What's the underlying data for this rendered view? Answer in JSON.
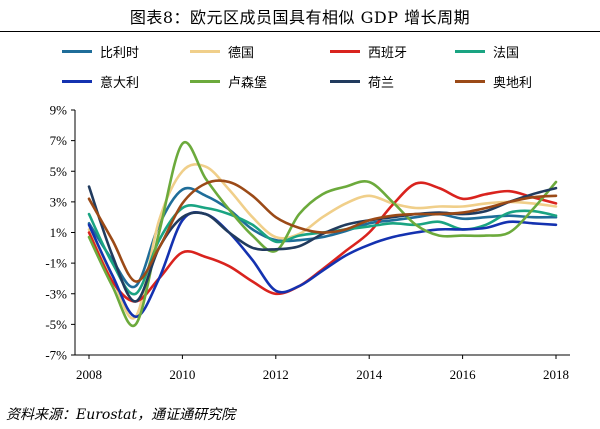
{
  "title": "图表8：欧元区成员国具有相似 GDP 增长周期",
  "footer": "资料来源：Eurostat，通证通研究院",
  "chart_data": {
    "type": "line",
    "title": "图表8：欧元区成员国具有相似 GDP 增长周期",
    "xlabel": "",
    "ylabel": "",
    "xlim": [
      2007.7,
      2018.3
    ],
    "ylim": [
      -7,
      9
    ],
    "x_ticks": [
      2008,
      2010,
      2012,
      2014,
      2016,
      2018
    ],
    "y_ticks": [
      {
        "value": 9,
        "label": "9%"
      },
      {
        "value": 7,
        "label": "7%"
      },
      {
        "value": 5,
        "label": "5%"
      },
      {
        "value": 3,
        "label": "3%"
      },
      {
        "value": 1,
        "label": "1%"
      },
      {
        "value": -1,
        "label": "-1%"
      },
      {
        "value": -3,
        "label": "-3%"
      },
      {
        "value": -5,
        "label": "-5%"
      },
      {
        "value": -7,
        "label": "-7%"
      }
    ],
    "grid": false,
    "legend_position": "top",
    "x": [
      2008,
      2008.5,
      2009,
      2009.5,
      2010,
      2010.5,
      2011,
      2011.5,
      2012,
      2012.5,
      2013,
      2013.5,
      2014,
      2014.5,
      2015,
      2015.5,
      2016,
      2016.5,
      2017,
      2017.5,
      2018
    ],
    "series": [
      {
        "name": "比利时",
        "color": "#1f6d99",
        "values": [
          1.6,
          -0.8,
          -2.5,
          1.5,
          3.8,
          3.4,
          2.5,
          1.2,
          0.5,
          0.5,
          0.7,
          1.1,
          1.6,
          1.8,
          2.0,
          2.2,
          1.9,
          2.0,
          2.1,
          2.0,
          2.0
        ]
      },
      {
        "name": "德国",
        "color": "#f0cf8a",
        "values": [
          1.2,
          -2.0,
          -4.5,
          1.8,
          5.0,
          5.3,
          3.8,
          2.0,
          0.7,
          0.9,
          2.0,
          2.9,
          3.4,
          2.9,
          2.6,
          2.7,
          2.7,
          2.9,
          3.0,
          2.9,
          2.7
        ]
      },
      {
        "name": "西班牙",
        "color": "#d9231e",
        "values": [
          1.0,
          -2.2,
          -3.5,
          -2.0,
          -0.3,
          -0.6,
          -1.2,
          -2.2,
          -3.0,
          -2.5,
          -1.4,
          -0.2,
          1.0,
          2.8,
          4.2,
          3.9,
          3.2,
          3.5,
          3.7,
          3.3,
          2.9
        ]
      },
      {
        "name": "法国",
        "color": "#1aa482",
        "values": [
          2.2,
          -1.0,
          -3.0,
          0.5,
          2.6,
          2.6,
          2.2,
          1.5,
          0.4,
          0.8,
          1.0,
          1.2,
          1.4,
          1.6,
          1.5,
          1.7,
          1.2,
          1.5,
          2.3,
          2.4,
          2.1
        ]
      },
      {
        "name": "意大利",
        "color": "#1432b0",
        "values": [
          1.5,
          -1.8,
          -4.5,
          -2.0,
          1.8,
          2.2,
          1.0,
          -0.8,
          -2.8,
          -2.5,
          -1.5,
          -0.5,
          0.2,
          0.7,
          1.0,
          1.2,
          1.2,
          1.3,
          1.7,
          1.6,
          1.5
        ]
      },
      {
        "name": "卢森堡",
        "color": "#6caa3c",
        "values": [
          0.7,
          -2.5,
          -5.0,
          1.0,
          6.8,
          4.5,
          2.5,
          0.8,
          -0.2,
          2.2,
          3.5,
          4.0,
          4.3,
          3.0,
          1.5,
          0.8,
          0.8,
          0.8,
          1.0,
          2.5,
          4.3
        ]
      },
      {
        "name": "荷兰",
        "color": "#213b5e",
        "values": [
          4.0,
          -0.5,
          -3.5,
          0.0,
          2.0,
          2.2,
          1.0,
          0.0,
          -0.1,
          0.1,
          0.9,
          1.5,
          1.8,
          2.0,
          2.2,
          2.3,
          2.2,
          2.4,
          3.0,
          3.5,
          3.9
        ]
      },
      {
        "name": "奥地利",
        "color": "#9b4a17",
        "values": [
          3.2,
          0.5,
          -2.2,
          0.0,
          2.9,
          4.2,
          4.3,
          3.4,
          2.0,
          1.3,
          1.0,
          1.2,
          1.8,
          2.1,
          2.2,
          2.2,
          2.3,
          2.6,
          3.0,
          3.3,
          3.4
        ]
      }
    ]
  }
}
